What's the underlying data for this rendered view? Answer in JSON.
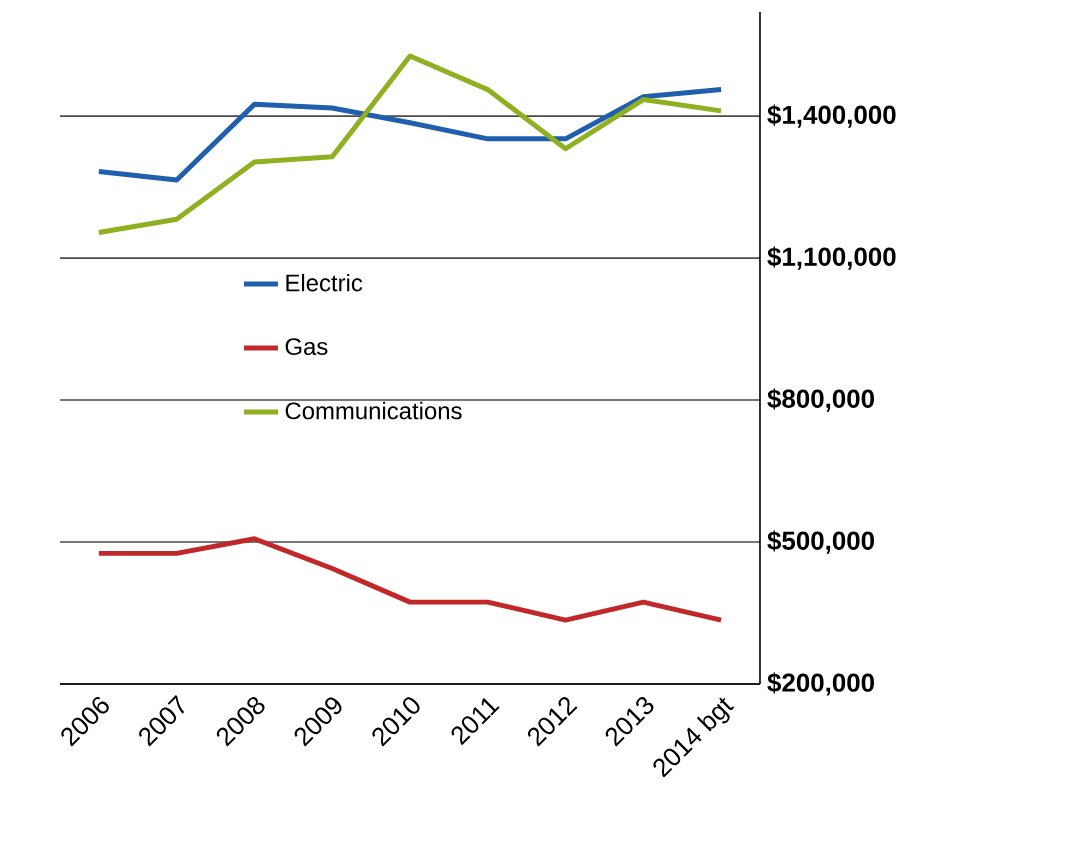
{
  "chart_data": {
    "type": "line",
    "categories": [
      "2006",
      "2007",
      "2008",
      "2009",
      "2010",
      "2011",
      "2012",
      "2013",
      "2014 bgt"
    ],
    "series": [
      {
        "name": "Electric",
        "color": "#1f5fae",
        "values": [
          1283000,
          1265000,
          1425000,
          1417000,
          1386000,
          1352000,
          1352000,
          1441000,
          1456000
        ]
      },
      {
        "name": "Gas",
        "color": "#c0282a",
        "values": [
          476000,
          476000,
          507000,
          444000,
          373000,
          373000,
          335000,
          373000,
          335000
        ]
      },
      {
        "name": "Communications",
        "color": "#8fb021",
        "values": [
          1154000,
          1182000,
          1303000,
          1314000,
          1527000,
          1456000,
          1331000,
          1435000,
          1411000
        ]
      }
    ],
    "ylim": [
      200000,
      1620000
    ],
    "yticks": [
      {
        "value": 200000,
        "label": "$200,000"
      },
      {
        "value": 500000,
        "label": "$500,000"
      },
      {
        "value": 800000,
        "label": "$800,000"
      },
      {
        "value": 1100000,
        "label": "$1,100,000"
      },
      {
        "value": 1400000,
        "label": "$1,400,000"
      }
    ],
    "grid": "y",
    "legend": "center",
    "marker": "none",
    "line_style": "solid"
  }
}
